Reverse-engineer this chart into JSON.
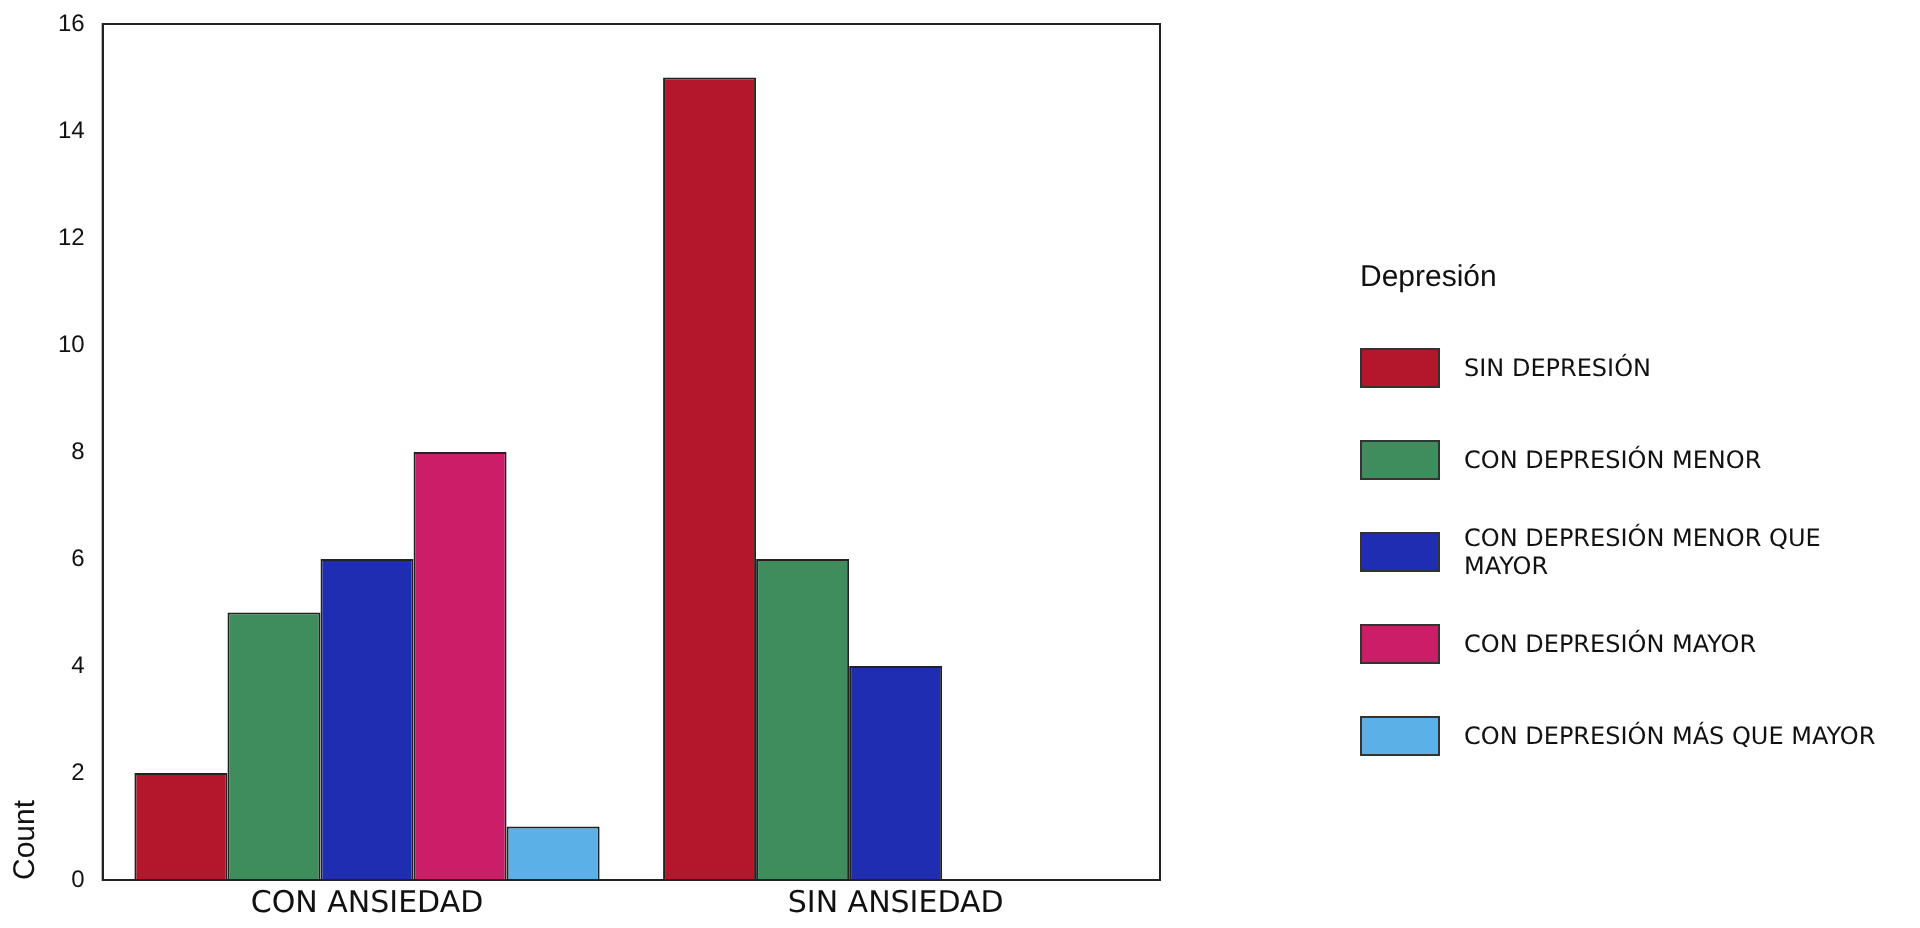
{
  "chart_data": {
    "type": "bar",
    "ylabel": "Count",
    "legend_title": "Depresión",
    "legend": "right",
    "grid": false,
    "categories": [
      "CON ANSIEDAD",
      "SIN ANSIEDAD"
    ],
    "ylim": [
      0,
      16
    ],
    "yticks": [
      0,
      2,
      4,
      6,
      8,
      10,
      12,
      14,
      16
    ],
    "series": [
      {
        "name": "SIN DEPRESIÓN",
        "color": "#b3172b",
        "values": [
          2,
          15
        ]
      },
      {
        "name": "CON DEPRESIÓN MENOR",
        "color": "#3f8c5c",
        "values": [
          5,
          6
        ]
      },
      {
        "name": "CON DEPRESIÓN MENOR QUE MAYOR",
        "color": "#1f2db3",
        "values": [
          6,
          4
        ]
      },
      {
        "name": "CON DEPRESIÓN MAYOR",
        "color": "#cc1d68",
        "values": [
          8,
          null
        ]
      },
      {
        "name": "CON DEPRESIÓN MÁS QUE MAYOR",
        "color": "#5cb0e8",
        "values": [
          1,
          null
        ]
      }
    ]
  }
}
